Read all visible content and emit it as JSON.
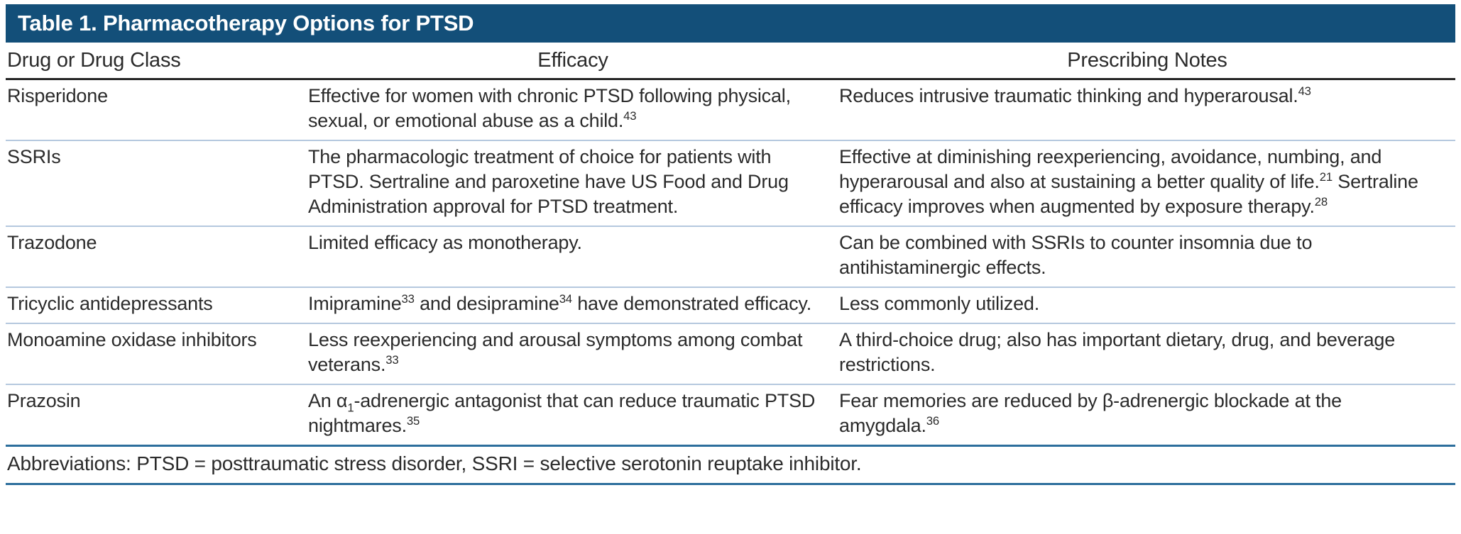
{
  "table": {
    "title": "Table 1. Pharmacotherapy Options for PTSD",
    "columns": [
      "Drug or Drug Class",
      "Efficacy",
      "Prescribing Notes"
    ],
    "rows": [
      {
        "drug": "Risperidone",
        "efficacy": [
          {
            "t": "Effective for women with chronic PTSD following physical, sexual, or emotional abuse as a child."
          },
          {
            "t": "43",
            "sup": true
          }
        ],
        "notes": [
          {
            "t": "Reduces intrusive traumatic thinking and hyperarousal."
          },
          {
            "t": "43",
            "sup": true
          }
        ]
      },
      {
        "drug": "SSRIs",
        "efficacy": "The pharmacologic treatment of choice for patients with PTSD. Sertraline and paroxetine have US Food and Drug Administration approval for PTSD treatment.",
        "notes": [
          {
            "t": "Effective at diminishing reexperiencing, avoidance, numbing, and hyperarousal and also at sustaining a better quality of life."
          },
          {
            "t": "21",
            "sup": true
          },
          {
            "t": " Sertraline efficacy improves when augmented by exposure therapy."
          },
          {
            "t": "28",
            "sup": true
          }
        ]
      },
      {
        "drug": "Trazodone",
        "efficacy": "Limited efficacy as monotherapy.",
        "notes": "Can be combined with SSRIs to counter insomnia due to antihistaminergic effects."
      },
      {
        "drug": "Tricyclic antidepressants",
        "efficacy": [
          {
            "t": "Imipramine"
          },
          {
            "t": "33",
            "sup": true
          },
          {
            "t": " and desipramine"
          },
          {
            "t": "34",
            "sup": true
          },
          {
            "t": " have demonstrated efficacy."
          }
        ],
        "notes": "Less commonly utilized."
      },
      {
        "drug": "Monoamine oxidase inhibitors",
        "efficacy": [
          {
            "t": "Less reexperiencing and arousal symptoms among combat veterans."
          },
          {
            "t": "33",
            "sup": true
          }
        ],
        "notes": "A third-choice drug; also has important dietary, drug, and beverage restrictions."
      },
      {
        "drug": "Prazosin",
        "efficacy": [
          {
            "t": "An α"
          },
          {
            "t": "1",
            "sub": true
          },
          {
            "t": "-adrenergic antagonist that can reduce traumatic PTSD nightmares."
          },
          {
            "t": "35",
            "sup": true
          }
        ],
        "notes": [
          {
            "t": "Fear memories are reduced by β-adrenergic blockade at the amygdala."
          },
          {
            "t": "36",
            "sup": true
          }
        ]
      }
    ],
    "footnote": "Abbreviations: PTSD = posttraumatic stress disorder, SSRI = selective serotonin reuptake inhibitor."
  },
  "colors": {
    "title_bar": "#134f79",
    "title_text": "#ffffff",
    "text": "#2b2b2b",
    "header_rule": "#262626",
    "row_divider": "#b5c8de",
    "footer_rule": "#2c6e9c",
    "page_bg": "#ffffff"
  }
}
